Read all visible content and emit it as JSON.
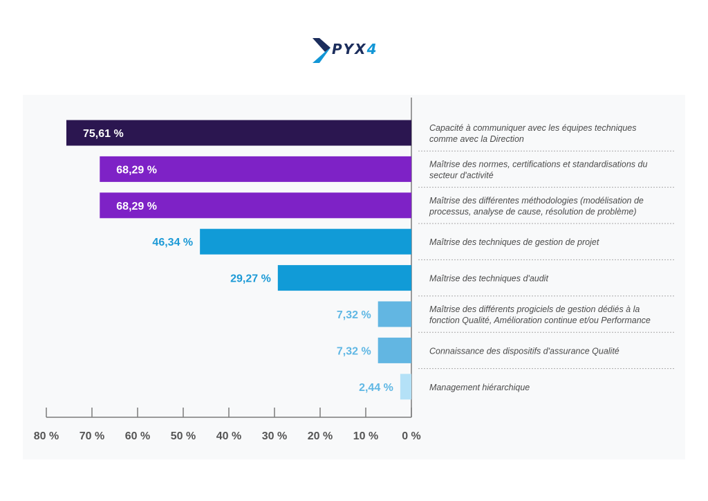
{
  "logo": {
    "text_main": "PYX",
    "text_accent": "4"
  },
  "colors": {
    "text_gray": "#4a4a4a",
    "axis": "#7a7a7a",
    "separator": "#a8a8a8",
    "label_light": "#ffffff",
    "label_blue": "#1d9ad6",
    "label_lightblue": "#5fb7e4"
  },
  "chart_data": {
    "type": "bar",
    "orientation": "horizontal",
    "direction": "right-to-left",
    "xlim": [
      0,
      80
    ],
    "x_ticks": [
      0,
      10,
      20,
      30,
      40,
      50,
      60,
      70,
      80
    ],
    "x_tick_labels": [
      "0 %",
      "10 %",
      "20 %",
      "30 %",
      "40 %",
      "50 %",
      "60 %",
      "70 %",
      "80 %"
    ],
    "categories": [
      [
        "Capacité à communiquer avec les équipes techniques",
        "comme avec la Direction"
      ],
      [
        "Maîtrise des normes, certifications et standardisations du",
        "secteur d'activité"
      ],
      [
        "Maîtrise des différentes méthodologies (modélisation de",
        "processus, analyse de cause, résolution de problème)"
      ],
      [
        "Maîtrise des techniques de gestion de projet"
      ],
      [
        "Maîtrise des techniques d'audit"
      ],
      [
        "Maîtrise des différents progiciels de gestion dédiés à la",
        "fonction Qualité, Amélioration continue et/ou Performance"
      ],
      [
        "Connaissance des dispositifs d'assurance Qualité"
      ],
      [
        "Management hiérarchique"
      ]
    ],
    "values": [
      75.61,
      68.29,
      68.29,
      46.34,
      29.27,
      7.32,
      7.32,
      2.44
    ],
    "value_labels": [
      "75,61 %",
      "68,29 %",
      "68,29 %",
      "46,34 %",
      "29,27 %",
      "7,32 %",
      "7,32 %",
      "2,44 %"
    ],
    "bar_colors": [
      "#2b1650",
      "#7e22c6",
      "#7e22c6",
      "#119bd7",
      "#119bd7",
      "#62b6e2",
      "#62b6e2",
      "#b4e1f7"
    ],
    "label_inside": [
      true,
      true,
      true,
      false,
      false,
      false,
      false,
      false
    ],
    "grid": false,
    "legend": "none"
  }
}
